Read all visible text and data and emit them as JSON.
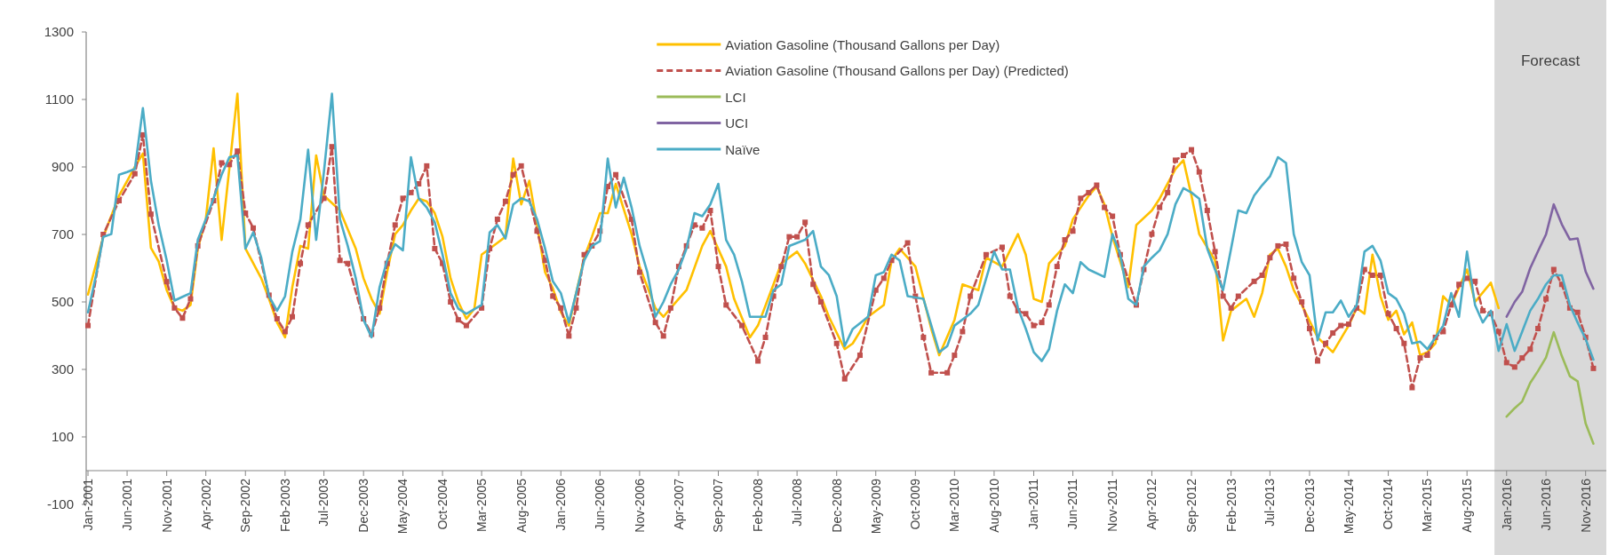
{
  "chart_data": {
    "type": "line",
    "legend": "top",
    "xlim": [
      "2000-12-25",
      "2017-01-20"
    ],
    "ylim": [
      -100,
      1300
    ],
    "yticks": [
      -100,
      100,
      300,
      500,
      700,
      900,
      1100,
      1300
    ],
    "xticks": [
      {
        "value": "2001-01",
        "label": "Jan-2001"
      },
      {
        "value": "2001-06",
        "label": "Jun-2001"
      },
      {
        "value": "2001-11",
        "label": "Nov-2001"
      },
      {
        "value": "2002-04",
        "label": "Apr-2002"
      },
      {
        "value": "2002-09",
        "label": "Sep-2002"
      },
      {
        "value": "2003-02",
        "label": "Feb-2003"
      },
      {
        "value": "2003-07",
        "label": "Jul-2003"
      },
      {
        "value": "2003-12",
        "label": "Dec-2003"
      },
      {
        "value": "2004-05",
        "label": "May-2004"
      },
      {
        "value": "2004-10",
        "label": "Oct-2004"
      },
      {
        "value": "2005-03",
        "label": "Mar-2005"
      },
      {
        "value": "2005-08",
        "label": "Aug-2005"
      },
      {
        "value": "2006-01",
        "label": "Jan-2006"
      },
      {
        "value": "2006-06",
        "label": "Jun-2006"
      },
      {
        "value": "2006-11",
        "label": "Nov-2006"
      },
      {
        "value": "2007-04",
        "label": "Apr-2007"
      },
      {
        "value": "2007-09",
        "label": "Sep-2007"
      },
      {
        "value": "2008-02",
        "label": "Feb-2008"
      },
      {
        "value": "2008-07",
        "label": "Jul-2008"
      },
      {
        "value": "2008-12",
        "label": "Dec-2008"
      },
      {
        "value": "2009-05",
        "label": "May-2009"
      },
      {
        "value": "2009-10",
        "label": "Oct-2009"
      },
      {
        "value": "2010-03",
        "label": "Mar-2010"
      },
      {
        "value": "2010-08",
        "label": "Aug-2010"
      },
      {
        "value": "2011-01",
        "label": "Jan-2011"
      },
      {
        "value": "2011-06",
        "label": "Jun-2011"
      },
      {
        "value": "2011-11",
        "label": "Nov-2011"
      },
      {
        "value": "2012-04",
        "label": "Apr-2012"
      },
      {
        "value": "2012-09",
        "label": "Sep-2012"
      },
      {
        "value": "2013-02",
        "label": "Feb-2013"
      },
      {
        "value": "2013-07",
        "label": "Jul-2013"
      },
      {
        "value": "2013-12",
        "label": "Dec-2013"
      },
      {
        "value": "2014-05",
        "label": "May-2014"
      },
      {
        "value": "2014-10",
        "label": "Oct-2014"
      },
      {
        "value": "2015-03",
        "label": "Mar-2015"
      },
      {
        "value": "2015-08",
        "label": "Aug-2015"
      },
      {
        "value": "2016-01",
        "label": "Jan-2016"
      },
      {
        "value": "2016-06",
        "label": "Jun-2016"
      },
      {
        "value": "2016-11",
        "label": "Nov-2016"
      }
    ],
    "bands": [
      {
        "axis": "x",
        "from": "2015-11-15",
        "to": "2017-01-20",
        "label": "Forecast",
        "color": "#d9d9d9"
      }
    ],
    "series": [
      {
        "name": "Aviation Gasoline (Thousand Gallons per Day)",
        "color": "#ffc000",
        "marker": "none",
        "line_style": "solid",
        "x": [
          "2001-01",
          "2001-03",
          "2001-05",
          "2001-07",
          "2001-08",
          "2001-09",
          "2001-10",
          "2001-11",
          "2001-12",
          "2002-01",
          "2002-02",
          "2002-03",
          "2002-04",
          "2002-05",
          "2002-06",
          "2002-08",
          "2002-09",
          "2002-11",
          "2002-12",
          "2003-01",
          "2003-02",
          "2003-03",
          "2003-04",
          "2003-05",
          "2003-06",
          "2003-07",
          "2003-09",
          "2003-11",
          "2003-12",
          "2004-01",
          "2004-02",
          "2004-03",
          "2004-04",
          "2004-05",
          "2004-06",
          "2004-07",
          "2004-08",
          "2004-09",
          "2004-10",
          "2004-11",
          "2004-12",
          "2005-01",
          "2005-02",
          "2005-03",
          "2005-05",
          "2005-06",
          "2005-07",
          "2005-08",
          "2005-09",
          "2005-10",
          "2005-11",
          "2005-12",
          "2006-01",
          "2006-02",
          "2006-03",
          "2006-04",
          "2006-05",
          "2006-06",
          "2006-07",
          "2006-08",
          "2006-10",
          "2006-11",
          "2007-01",
          "2007-02",
          "2007-03",
          "2007-05",
          "2007-07",
          "2007-08",
          "2007-10",
          "2007-11",
          "2008-01",
          "2008-02",
          "2008-04",
          "2008-05",
          "2008-07",
          "2008-08",
          "2008-10",
          "2008-11",
          "2009-01",
          "2009-02",
          "2009-03",
          "2009-04",
          "2009-06",
          "2009-07",
          "2009-08",
          "2009-10",
          "2009-12",
          "2010-01",
          "2010-03",
          "2010-04",
          "2010-06",
          "2010-07",
          "2010-09",
          "2010-11",
          "2010-12",
          "2011-01",
          "2011-02",
          "2011-03",
          "2011-05",
          "2011-06",
          "2011-08",
          "2011-09",
          "2011-10",
          "2011-11",
          "2012-01",
          "2012-02",
          "2012-04",
          "2012-05",
          "2012-07",
          "2012-08",
          "2012-09",
          "2012-10",
          "2012-12",
          "2013-01",
          "2013-02",
          "2013-04",
          "2013-05",
          "2013-06",
          "2013-07",
          "2013-08",
          "2013-09",
          "2013-10",
          "2013-11",
          "2014-01",
          "2014-03",
          "2014-05",
          "2014-06",
          "2014-07",
          "2014-08",
          "2014-09",
          "2014-10",
          "2014-11",
          "2014-12",
          "2015-01",
          "2015-02",
          "2015-03",
          "2015-04",
          "2015-05",
          "2015-06",
          "2015-08",
          "2015-09",
          "2015-11",
          "2015-12"
        ],
        "values": [
          522,
          693,
          815,
          900,
          940,
          660,
          620,
          535,
          482,
          474,
          491,
          658,
          745,
          955,
          684,
          1117,
          658,
          570,
          509,
          439,
          395,
          544,
          666,
          658,
          934,
          815,
          771,
          658,
          570,
          509,
          465,
          588,
          701,
          728,
          771,
          806,
          798,
          763,
          693,
          570,
          500,
          450,
          480,
          640,
          675,
          693,
          925,
          789,
          859,
          728,
          588,
          540,
          470,
          430,
          526,
          631,
          693,
          763,
          763,
          850,
          701,
          605,
          482,
          456,
          482,
          535,
          666,
          710,
          605,
          509,
          395,
          430,
          552,
          614,
          649,
          614,
          517,
          456,
          360,
          377,
          412,
          456,
          491,
          623,
          658,
          605,
          421,
          342,
          447,
          552,
          535,
          631,
          605,
          701,
          640,
          509,
          500,
          614,
          666,
          745,
          815,
          842,
          789,
          693,
          544,
          728,
          771,
          806,
          894,
          920,
          815,
          701,
          623,
          386,
          474,
          509,
          456,
          526,
          640,
          658,
          605,
          535,
          491,
          395,
          351,
          430,
          482,
          465,
          640,
          517,
          447,
          474,
          404,
          439,
          342,
          351,
          377,
          517,
          491,
          596,
          500,
          557,
          482
        ]
      },
      {
        "name": "Aviation Gasoline (Thousand Gallons per Day) (Predicted)",
        "color": "#c0504d",
        "marker": "square",
        "line_style": "dashed",
        "x": [
          "2001-01",
          "2001-03",
          "2001-05",
          "2001-07",
          "2001-08",
          "2001-09",
          "2001-11",
          "2001-12",
          "2002-01",
          "2002-02",
          "2002-03",
          "2002-05",
          "2002-06",
          "2002-07",
          "2002-08",
          "2002-09",
          "2002-10",
          "2002-12",
          "2003-01",
          "2003-02",
          "2003-03",
          "2003-04",
          "2003-05",
          "2003-07",
          "2003-08",
          "2003-09",
          "2003-10",
          "2003-12",
          "2004-01",
          "2004-02",
          "2004-03",
          "2004-04",
          "2004-05",
          "2004-06",
          "2004-07",
          "2004-08",
          "2004-09",
          "2004-10",
          "2004-11",
          "2004-12",
          "2005-01",
          "2005-03",
          "2005-04",
          "2005-05",
          "2005-06",
          "2005-07",
          "2005-08",
          "2005-10",
          "2005-11",
          "2005-12",
          "2006-01",
          "2006-02",
          "2006-03",
          "2006-04",
          "2006-05",
          "2006-06",
          "2006-07",
          "2006-08",
          "2006-10",
          "2006-11",
          "2007-01",
          "2007-02",
          "2007-03",
          "2007-04",
          "2007-05",
          "2007-06",
          "2007-07",
          "2007-08",
          "2007-09",
          "2007-10",
          "2007-12",
          "2008-02",
          "2008-03",
          "2008-04",
          "2008-05",
          "2008-06",
          "2008-07",
          "2008-08",
          "2008-09",
          "2008-10",
          "2008-12",
          "2009-01",
          "2009-03",
          "2009-05",
          "2009-06",
          "2009-07",
          "2009-09",
          "2009-10",
          "2009-11",
          "2009-12",
          "2010-02",
          "2010-03",
          "2010-04",
          "2010-05",
          "2010-07",
          "2010-09",
          "2010-10",
          "2010-11",
          "2010-12",
          "2011-01",
          "2011-02",
          "2011-03",
          "2011-04",
          "2011-05",
          "2011-06",
          "2011-07",
          "2011-08",
          "2011-09",
          "2011-10",
          "2011-11",
          "2011-12",
          "2012-02",
          "2012-03",
          "2012-04",
          "2012-05",
          "2012-06",
          "2012-07",
          "2012-08",
          "2012-09",
          "2012-10",
          "2012-11",
          "2012-12",
          "2013-01",
          "2013-02",
          "2013-03",
          "2013-05",
          "2013-06",
          "2013-07",
          "2013-08",
          "2013-09",
          "2013-10",
          "2013-11",
          "2013-12",
          "2014-01",
          "2014-02",
          "2014-03",
          "2014-04",
          "2014-05",
          "2014-06",
          "2014-07",
          "2014-08",
          "2014-09",
          "2014-10",
          "2014-11",
          "2014-12",
          "2015-01",
          "2015-02",
          "2015-03",
          "2015-04",
          "2015-05",
          "2015-06",
          "2015-07",
          "2015-08",
          "2015-09",
          "2015-10",
          "2015-11",
          "2015-12",
          "2016-01",
          "2016-02",
          "2016-03",
          "2016-04",
          "2016-05",
          "2016-06",
          "2016-07",
          "2016-08",
          "2016-09",
          "2016-10",
          "2016-11",
          "2016-12"
        ],
        "values": [
          430,
          700,
          800,
          880,
          995,
          760,
          560,
          482,
          452,
          509,
          666,
          800,
          912,
          907,
          947,
          763,
          719,
          520,
          450,
          412,
          456,
          614,
          728,
          807,
          960,
          623,
          614,
          450,
          404,
          482,
          614,
          728,
          807,
          824,
          850,
          903,
          658,
          614,
          500,
          447,
          430,
          482,
          658,
          745,
          798,
          877,
          903,
          710,
          623,
          517,
          482,
          399,
          482,
          640,
          666,
          710,
          842,
          877,
          745,
          588,
          439,
          399,
          482,
          605,
          666,
          728,
          719,
          771,
          605,
          491,
          430,
          325,
          395,
          517,
          605,
          693,
          693,
          736,
          552,
          500,
          377,
          272,
          342,
          535,
          570,
          623,
          675,
          517,
          395,
          290,
          290,
          342,
          412,
          517,
          640,
          662,
          517,
          474,
          465,
          430,
          439,
          491,
          605,
          684,
          710,
          807,
          824,
          846,
          780,
          754,
          640,
          491,
          596,
          701,
          780,
          824,
          920,
          934,
          951,
          885,
          771,
          649,
          517,
          482,
          517,
          561,
          579,
          631,
          666,
          671,
          570,
          500,
          421,
          325,
          377,
          408,
          430,
          434,
          482,
          596,
          579,
          579,
          465,
          421,
          377,
          246,
          334,
          342,
          395,
          412,
          491,
          552,
          570,
          561,
          474,
          465,
          412,
          320,
          307,
          334,
          360,
          421,
          509,
          596,
          552,
          482,
          469,
          395,
          303
        ]
      },
      {
        "name": "LCI",
        "color": "#9bbb59",
        "marker": "none",
        "line_style": "solid",
        "x": [
          "2016-01",
          "2016-02",
          "2016-03",
          "2016-04",
          "2016-05",
          "2016-06",
          "2016-07",
          "2016-08",
          "2016-09",
          "2016-10",
          "2016-11",
          "2016-12"
        ],
        "values": [
          160,
          185,
          205,
          260,
          295,
          335,
          410,
          340,
          280,
          265,
          140,
          80
        ]
      },
      {
        "name": "UCI",
        "color": "#8064a2",
        "marker": "none",
        "line_style": "solid",
        "x": [
          "2016-01",
          "2016-02",
          "2016-03",
          "2016-04",
          "2016-05",
          "2016-06",
          "2016-07",
          "2016-08",
          "2016-09",
          "2016-10",
          "2016-11",
          "2016-12"
        ],
        "values": [
          456,
          500,
          530,
          600,
          650,
          700,
          789,
          730,
          685,
          688,
          590,
          539
        ]
      },
      {
        "name": "Naïve",
        "color": "#4bacc6",
        "marker": "none",
        "line_style": "solid",
        "x": [
          "2001-01",
          "2001-02",
          "2001-03",
          "2001-04",
          "2001-05",
          "2001-06",
          "2001-07",
          "2001-08",
          "2001-09",
          "2001-10",
          "2001-11",
          "2001-12",
          "2002-01",
          "2002-02",
          "2002-03",
          "2002-04",
          "2002-05",
          "2002-06",
          "2002-07",
          "2002-08",
          "2002-09",
          "2002-10",
          "2002-11",
          "2002-12",
          "2003-01",
          "2003-02",
          "2003-03",
          "2003-04",
          "2003-05",
          "2003-06",
          "2003-07",
          "2003-08",
          "2003-09",
          "2003-10",
          "2003-11",
          "2003-12",
          "2004-01",
          "2004-02",
          "2004-03",
          "2004-04",
          "2004-05",
          "2004-06",
          "2004-07",
          "2004-08",
          "2004-09",
          "2004-10",
          "2004-11",
          "2004-12",
          "2005-01",
          "2005-03",
          "2005-04",
          "2005-05",
          "2005-06",
          "2005-07",
          "2005-08",
          "2005-09",
          "2005-10",
          "2005-11",
          "2005-12",
          "2006-01",
          "2006-02",
          "2006-03",
          "2006-04",
          "2006-05",
          "2006-06",
          "2006-07",
          "2006-08",
          "2006-09",
          "2006-10",
          "2006-11",
          "2006-12",
          "2007-01",
          "2007-02",
          "2007-03",
          "2007-04",
          "2007-05",
          "2007-06",
          "2007-07",
          "2007-08",
          "2007-09",
          "2007-10",
          "2007-11",
          "2007-12",
          "2008-01",
          "2008-03",
          "2008-04",
          "2008-05",
          "2008-06",
          "2008-08",
          "2008-09",
          "2008-10",
          "2008-11",
          "2008-12",
          "2009-01",
          "2009-02",
          "2009-04",
          "2009-05",
          "2009-06",
          "2009-07",
          "2009-08",
          "2009-09",
          "2009-11",
          "2010-01",
          "2010-02",
          "2010-03",
          "2010-05",
          "2010-06",
          "2010-08",
          "2010-09",
          "2010-10",
          "2010-11",
          "2010-12",
          "2011-01",
          "2011-02",
          "2011-03",
          "2011-04",
          "2011-05",
          "2011-06",
          "2011-07",
          "2011-08",
          "2011-10",
          "2011-11",
          "2011-12",
          "2012-01",
          "2012-02",
          "2012-03",
          "2012-04",
          "2012-05",
          "2012-06",
          "2012-07",
          "2012-08",
          "2012-09",
          "2012-10",
          "2012-11",
          "2012-12",
          "2013-01",
          "2013-02",
          "2013-03",
          "2013-04",
          "2013-05",
          "2013-06",
          "2013-07",
          "2013-08",
          "2013-09",
          "2013-10",
          "2013-11",
          "2013-12",
          "2014-01",
          "2014-02",
          "2014-03",
          "2014-04",
          "2014-05",
          "2014-06",
          "2014-07",
          "2014-08",
          "2014-09",
          "2014-10",
          "2014-11",
          "2014-12",
          "2015-01",
          "2015-02",
          "2015-03",
          "2015-04",
          "2015-05",
          "2015-06",
          "2015-07",
          "2015-08",
          "2015-09",
          "2015-10",
          "2015-11",
          "2015-12",
          "2016-01",
          "2016-02",
          "2016-03",
          "2016-04",
          "2016-05",
          "2016-06",
          "2016-07",
          "2016-08",
          "2016-09",
          "2016-10",
          "2016-11",
          "2016-12"
        ],
        "values": [
          469,
          579,
          693,
          701,
          877,
          885,
          894,
          1074,
          859,
          728,
          623,
          504,
          515,
          526,
          684,
          745,
          807,
          877,
          929,
          934,
          658,
          706,
          631,
          517,
          474,
          517,
          649,
          745,
          951,
          684,
          885,
          1117,
          745,
          666,
          570,
          447,
          395,
          544,
          623,
          671,
          653,
          929,
          807,
          780,
          736,
          640,
          526,
          480,
          465,
          491,
          706,
          728,
          688,
          789,
          807,
          798,
          745,
          658,
          561,
          526,
          439,
          526,
          623,
          666,
          680,
          925,
          780,
          868,
          780,
          666,
          588,
          456,
          500,
          552,
          596,
          658,
          763,
          754,
          789,
          850,
          684,
          640,
          561,
          456,
          456,
          535,
          552,
          666,
          684,
          710,
          605,
          579,
          517,
          369,
          420,
          456,
          579,
          588,
          640,
          623,
          517,
          509,
          351,
          369,
          430,
          465,
          491,
          649,
          596,
          596,
          482,
          421,
          351,
          325,
          360,
          474,
          552,
          526,
          618,
          596,
          574,
          701,
          640,
          509,
          491,
          605,
          631,
          653,
          701,
          789,
          837,
          824,
          806,
          658,
          596,
          535,
          658,
          771,
          763,
          815,
          846,
          872,
          929,
          912,
          701,
          618,
          579,
          386,
          469,
          469,
          504,
          456,
          491,
          649,
          666,
          623,
          526,
          509,
          465,
          377,
          382,
          360,
          395,
          430,
          526,
          456,
          649,
          491,
          439,
          474,
          355,
          434,
          355,
          412,
          474,
          509,
          552,
          579,
          579,
          491,
          439,
          390,
          329
        ]
      }
    ]
  }
}
